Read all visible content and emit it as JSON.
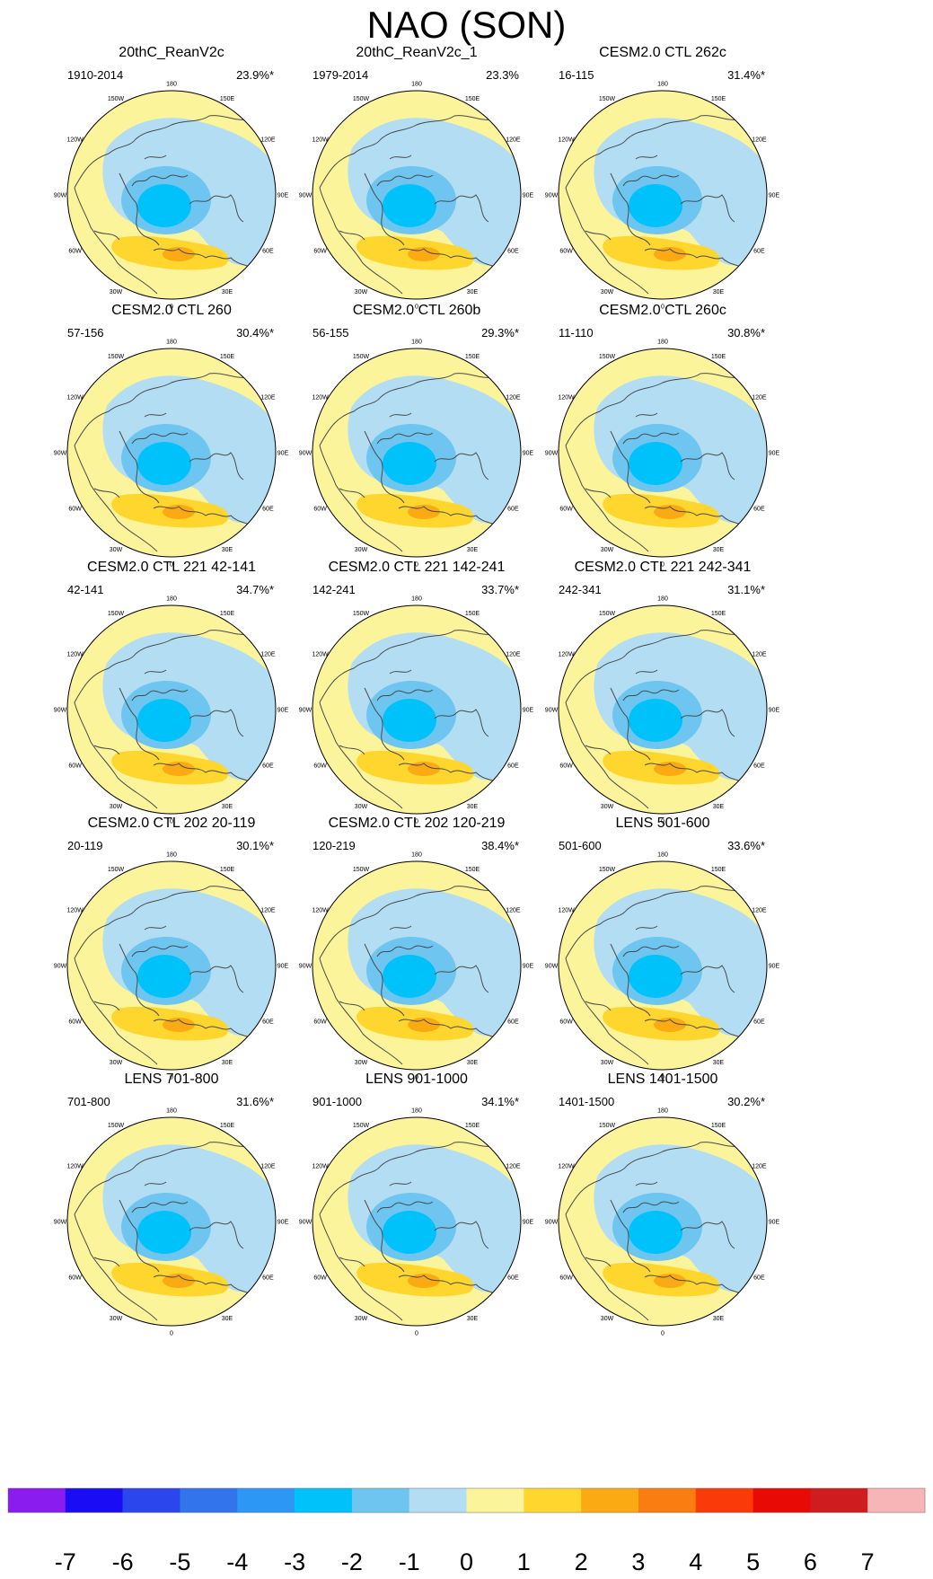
{
  "figure": {
    "title": "NAO (SON)"
  },
  "chart_data": {
    "type": "contour-map",
    "projection": "north polar stereographic",
    "title": "NAO (SON)",
    "longitude_labels": [
      "180",
      "150E",
      "120E",
      "90E",
      "60E",
      "30E",
      "0",
      "30W",
      "60W",
      "90W",
      "120W",
      "150W"
    ],
    "panels": [
      {
        "title": "20thC_ReanV2c",
        "years": "1910-2014",
        "variance": "23.9%*"
      },
      {
        "title": "20thC_ReanV2c_1",
        "years": "1979-2014",
        "variance": "23.3%"
      },
      {
        "title": "CESM2.0 CTL 262c",
        "years": "16-115",
        "variance": "31.4%*"
      },
      {
        "title": "CESM2.0 CTL 260",
        "years": "57-156",
        "variance": "30.4%*"
      },
      {
        "title": "CESM2.0 CTL 260b",
        "years": "56-155",
        "variance": "29.3%*"
      },
      {
        "title": "CESM2.0 CTL 260c",
        "years": "11-110",
        "variance": "30.8%*"
      },
      {
        "title": "CESM2.0 CTL 221 42-141",
        "years": "42-141",
        "variance": "34.7%*"
      },
      {
        "title": "CESM2.0 CTL 221 142-241",
        "years": "142-241",
        "variance": "33.7%*"
      },
      {
        "title": "CESM2.0 CTL 221 242-341",
        "years": "242-341",
        "variance": "31.1%*"
      },
      {
        "title": "CESM2.0 CTL 202 20-119",
        "years": "20-119",
        "variance": "30.1%*"
      },
      {
        "title": "CESM2.0 CTL 202 120-219",
        "years": "120-219",
        "variance": "38.4%*"
      },
      {
        "title": "LENS 501-600",
        "years": "501-600",
        "variance": "33.6%*"
      },
      {
        "title": "LENS 701-800",
        "years": "701-800",
        "variance": "31.6%*"
      },
      {
        "title": "LENS 901-1000",
        "years": "901-1000",
        "variance": "34.1%*"
      },
      {
        "title": "LENS 1401-1500",
        "years": "1401-1500",
        "variance": "30.2%*"
      }
    ],
    "colorbar": {
      "levels": [
        "-7",
        "-6",
        "-5",
        "-4",
        "-3",
        "-2",
        "-1",
        "0",
        "1",
        "2",
        "3",
        "4",
        "5",
        "6",
        "7"
      ],
      "colors": [
        "#8a1cf0",
        "#1a0cf5",
        "#2c46ee",
        "#3274ec",
        "#2c97f4",
        "#00c2fa",
        "#6ec6f0",
        "#b2ddf2",
        "#fbf49b",
        "#fed62e",
        "#fbaa13",
        "#f97d10",
        "#fa3a09",
        "#e80a05",
        "#cf1d1f",
        "#f8b5b8"
      ]
    }
  }
}
